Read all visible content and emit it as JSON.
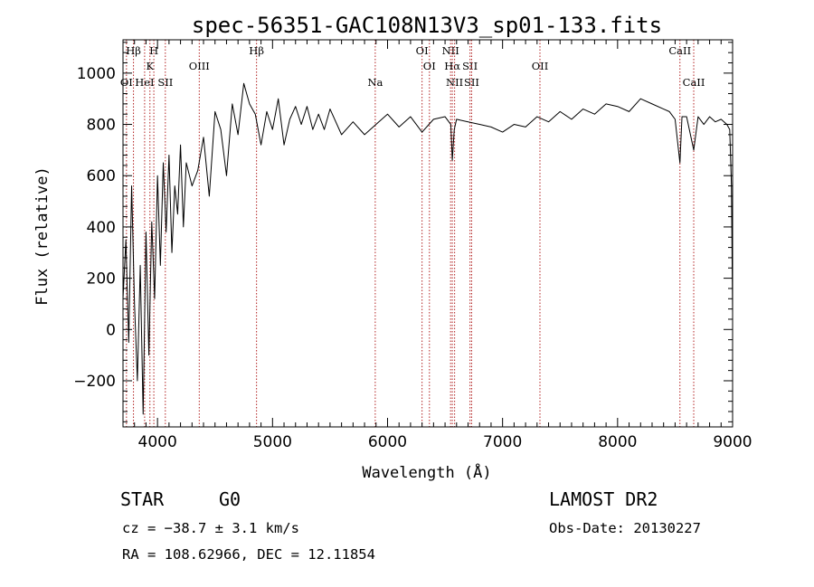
{
  "chart_data": {
    "type": "line",
    "title": "spec-56351-GAC108N13V3_sp01-133.fits",
    "xlabel": "Wavelength (Å)",
    "ylabel": "Flux (relative)",
    "xlim": [
      3700,
      9000
    ],
    "ylim": [
      -380,
      1130
    ],
    "x_ticks": [
      4000,
      5000,
      6000,
      7000,
      8000,
      9000
    ],
    "x_tick_labels": [
      "4000",
      "5000",
      "6000",
      "7000",
      "8000",
      "9000"
    ],
    "y_ticks": [
      -200,
      0,
      200,
      400,
      600,
      800,
      1000
    ],
    "y_tick_labels": [
      "−200",
      "0",
      "200",
      "400",
      "600",
      "800",
      "1000"
    ],
    "line_color": "#000000",
    "marker_color": "#b22222",
    "series": [
      {
        "x": [
          3700,
          3725,
          3750,
          3775,
          3800,
          3825,
          3850,
          3875,
          3900,
          3925,
          3950,
          3975,
          4000,
          4025,
          4050,
          4075,
          4100,
          4125,
          4150,
          4175,
          4200,
          4225,
          4250,
          4300,
          4350,
          4400,
          4450,
          4500,
          4550,
          4600,
          4650,
          4700,
          4750,
          4800,
          4850,
          4900,
          4950,
          5000,
          5050,
          5100,
          5150,
          5200,
          5250,
          5300,
          5350,
          5400,
          5450,
          5500,
          5600,
          5700,
          5800,
          5900,
          6000,
          6100,
          6200,
          6300,
          6400,
          6500,
          6550,
          6563,
          6580,
          6600,
          6700,
          6800,
          6900,
          7000,
          7100,
          7200,
          7300,
          7400,
          7500,
          7600,
          7700,
          7800,
          7900,
          8000,
          8100,
          8200,
          8300,
          8400,
          8450,
          8500,
          8542,
          8560,
          8600,
          8662,
          8700,
          8750,
          8800,
          8850,
          8900,
          8950,
          8975,
          8990,
          9000
        ],
        "y": [
          120,
          350,
          -50,
          560,
          100,
          -200,
          250,
          -330,
          380,
          -100,
          420,
          120,
          600,
          250,
          650,
          380,
          680,
          300,
          560,
          450,
          720,
          400,
          650,
          560,
          620,
          750,
          520,
          850,
          780,
          600,
          880,
          760,
          960,
          880,
          840,
          720,
          850,
          780,
          900,
          720,
          820,
          870,
          800,
          870,
          780,
          840,
          780,
          860,
          760,
          810,
          760,
          800,
          840,
          790,
          830,
          770,
          820,
          830,
          800,
          660,
          780,
          820,
          810,
          800,
          790,
          770,
          800,
          790,
          830,
          810,
          850,
          820,
          860,
          840,
          880,
          870,
          850,
          900,
          880,
          860,
          850,
          820,
          650,
          830,
          830,
          700,
          830,
          800,
          830,
          810,
          820,
          800,
          780,
          560,
          60
        ]
      }
    ],
    "spectral_lines": [
      {
        "label": "Hβ",
        "x": 3791,
        "row": 0,
        "labels_shown": true
      },
      {
        "label": "OI",
        "x": 3730,
        "row": 2,
        "labels_shown": true
      },
      {
        "label": "HeI",
        "x": 3888,
        "row": 2,
        "labels_shown": true
      },
      {
        "label": "H",
        "x": 3968,
        "row": 0,
        "labels_shown": true
      },
      {
        "label": "K",
        "x": 3934,
        "row": 1,
        "labels_shown": true
      },
      {
        "label": "SII",
        "x": 4068,
        "row": 2,
        "labels_shown": true
      },
      {
        "label": "OIII",
        "x": 4363,
        "row": 1,
        "labels_shown": true
      },
      {
        "label": "Hβ",
        "x": 4861,
        "row": 0,
        "labels_shown": true
      },
      {
        "label": "Na",
        "x": 5893,
        "row": 2,
        "labels_shown": true
      },
      {
        "label": "OI",
        "x": 6300,
        "row": 0,
        "labels_shown": true
      },
      {
        "label": "OI",
        "x": 6364,
        "row": 1,
        "labels_shown": true
      },
      {
        "label": "NII",
        "x": 6548,
        "row": 0,
        "labels_shown": true
      },
      {
        "label": "Hα",
        "x": 6563,
        "row": 1,
        "labels_shown": true
      },
      {
        "label": "NII",
        "x": 6583,
        "row": 2,
        "labels_shown": true
      },
      {
        "label": "SII",
        "x": 6717,
        "row": 1,
        "labels_shown": true
      },
      {
        "label": "SII",
        "x": 6731,
        "row": 2,
        "labels_shown": true
      },
      {
        "label": "OII",
        "x": 7325,
        "row": 1,
        "labels_shown": true
      },
      {
        "label": "CaII",
        "x": 8542,
        "row": 0,
        "labels_shown": true
      },
      {
        "label": "CaII",
        "x": 8662,
        "row": 2,
        "labels_shown": true
      }
    ]
  },
  "info": {
    "object_class": "STAR",
    "subclass": "G0",
    "survey": "LAMOST DR2",
    "redshift": "cz = −38.7 ± 3.1 km/s",
    "obs_date": "Obs-Date: 20130227",
    "coords": "RA = 108.62966, DEC =  12.11854"
  }
}
